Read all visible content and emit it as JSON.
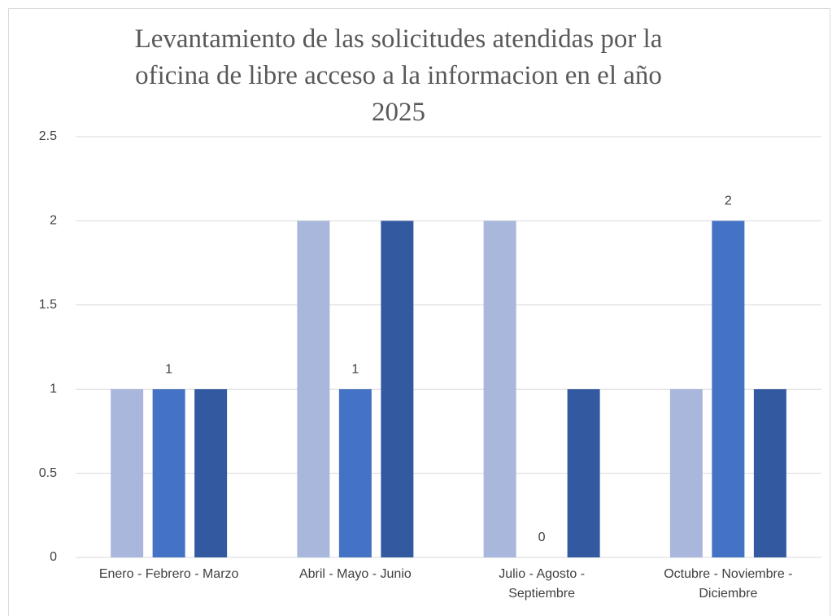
{
  "chart_data": {
    "type": "bar",
    "title": "Levantamiento de las solicitudes atendidas por la oficina de libre acceso a la informacion en el año 2025",
    "categories": [
      "Enero - Febrero - Marzo",
      "Abril - Mayo - Junio",
      "Julio - Agosto - Septiembre",
      "Octubre - Noviembre - Diciembre"
    ],
    "series": [
      {
        "color": "#a9b7dc",
        "values": [
          1,
          2,
          2,
          1
        ]
      },
      {
        "color": "#4472c4",
        "values": [
          1,
          1,
          0,
          2
        ],
        "data_labels": true
      },
      {
        "color": "#335aa1",
        "values": [
          1,
          2,
          1,
          1
        ]
      }
    ],
    "ylim": [
      0,
      2.5
    ],
    "yticks": [
      0,
      0.5,
      1,
      1.5,
      2,
      2.5
    ],
    "grid": true
  }
}
